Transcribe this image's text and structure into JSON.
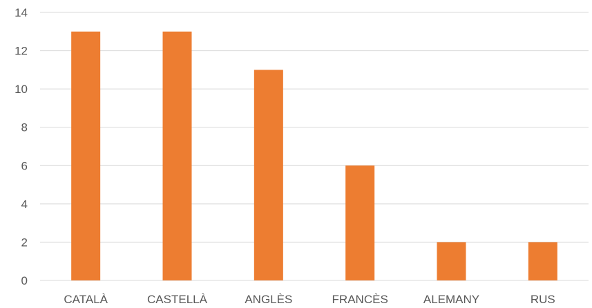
{
  "chart_data": {
    "type": "bar",
    "categories": [
      "CATALÀ",
      "CASTELLÀ",
      "ANGLÈS",
      "FRANCÈS",
      "ALEMANY",
      "RUS"
    ],
    "values": [
      13,
      13,
      11,
      6,
      2,
      2
    ],
    "ylim": [
      0,
      14
    ],
    "yticks": [
      0,
      2,
      4,
      6,
      8,
      10,
      12,
      14
    ],
    "grid": true,
    "legend": "none",
    "bar_color": "#ED7D31",
    "title": "",
    "xlabel": "",
    "ylabel": ""
  }
}
